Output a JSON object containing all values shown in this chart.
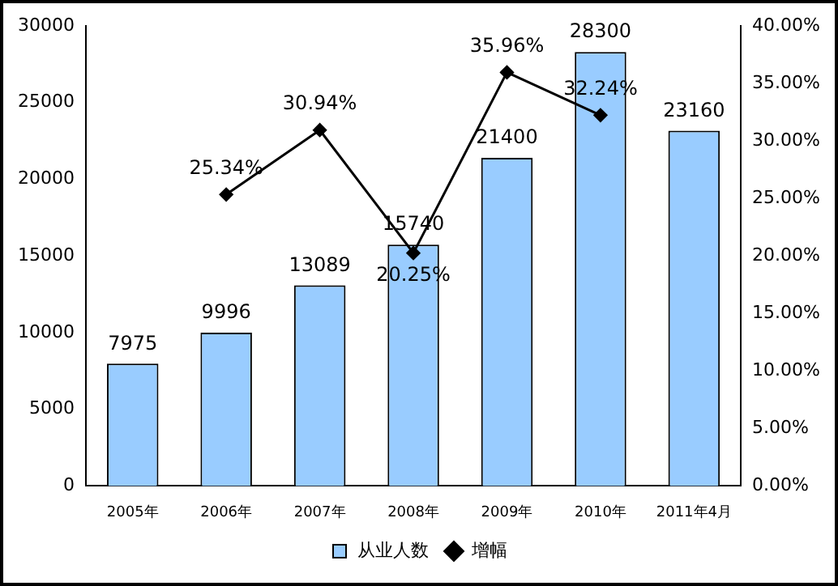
{
  "chart_data": {
    "type": "bar",
    "categories": [
      "2005年",
      "2006年",
      "2007年",
      "2008年",
      "2009年",
      "2010年",
      "2011年4月"
    ],
    "series": [
      {
        "name": "从业人数",
        "color": "#99ccff",
        "values": [
          7975,
          9996,
          13089,
          15740,
          21400,
          28300,
          23160
        ],
        "value_labels": [
          "7975",
          "9996",
          "13089",
          "15740",
          "21400",
          "28300",
          "23160"
        ]
      },
      {
        "name": "增幅",
        "type": "line",
        "axis": "y2",
        "color": "#000000",
        "values": [
          null,
          25.34,
          30.94,
          20.25,
          35.96,
          32.24,
          null
        ],
        "value_labels": [
          null,
          "25.34%",
          "30.94%",
          "20.25%",
          "35.96%",
          "32.24%",
          null
        ]
      }
    ],
    "ylim": [
      0,
      30000
    ],
    "yticks": [
      0,
      5000,
      10000,
      15000,
      20000,
      25000,
      30000
    ],
    "y2lim": [
      0,
      40
    ],
    "y2ticks": [
      {
        "value": 0,
        "label": "0.00%"
      },
      {
        "value": 5,
        "label": "5.00%"
      },
      {
        "value": 10,
        "label": "10.00%"
      },
      {
        "value": 15,
        "label": "15.00%"
      },
      {
        "value": 20,
        "label": "20.00%"
      },
      {
        "value": 25,
        "label": "25.00%"
      },
      {
        "value": 30,
        "label": "30.00%"
      },
      {
        "value": 35,
        "label": "35.00%"
      },
      {
        "value": 40,
        "label": "40.00%"
      }
    ],
    "legend": "bottom",
    "grid": false,
    "marker": "diamond",
    "line_style": "solid"
  }
}
